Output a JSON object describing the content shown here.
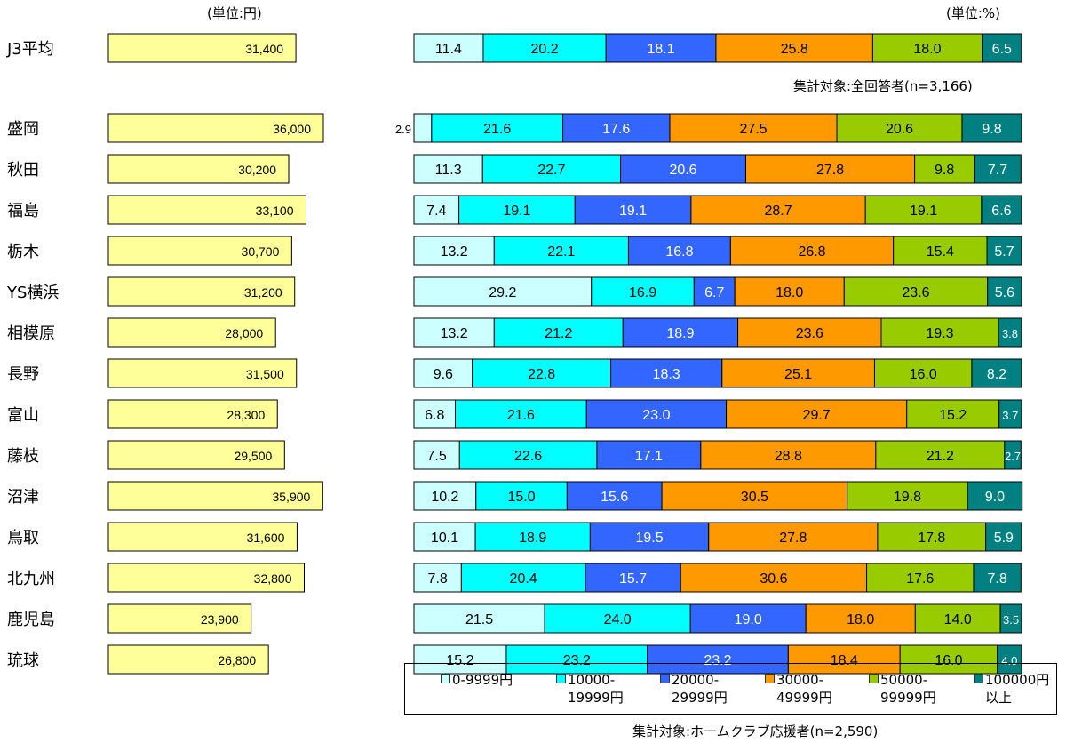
{
  "units": {
    "amount": "(単位:円)",
    "percent": "(単位:%)"
  },
  "notes": {
    "all_respondents": "集計対象:全回答者(n=3,166)",
    "home_supporters": "集計対象:ホームクラブ応援者(n=2,590)"
  },
  "colors": {
    "amount_bar": "#ffff99",
    "segments": [
      "#ccffff",
      "#00ffff",
      "#3366ff",
      "#ff9900",
      "#99cc00",
      "#008080"
    ]
  },
  "chart_data": [
    {
      "type": "bar",
      "orientation": "horizontal",
      "categories": [
        "J3平均",
        "盛岡",
        "秋田",
        "福島",
        "栃木",
        "YS横浜",
        "相模原",
        "長野",
        "富山",
        "藤枝",
        "沼津",
        "鳥取",
        "北九州",
        "鹿児島",
        "琉球"
      ],
      "value_labels": [
        "31,400",
        "36,000",
        "30,200",
        "33,100",
        "30,700",
        "31,200",
        "28,000",
        "31,500",
        "28,300",
        "29,500",
        "35,900",
        "31,600",
        "32,800",
        "23,900",
        "26,800"
      ],
      "values": [
        31400,
        36000,
        30200,
        33100,
        30700,
        31200,
        28000,
        31500,
        28300,
        29500,
        35900,
        31600,
        32800,
        23900,
        26800
      ]
    },
    {
      "type": "bar",
      "orientation": "horizontal",
      "stacked": "100%",
      "categories": [
        "J3平均",
        "盛岡",
        "秋田",
        "福島",
        "栃木",
        "YS横浜",
        "相模原",
        "長野",
        "富山",
        "藤枝",
        "沼津",
        "鳥取",
        "北九州",
        "鹿児島",
        "琉球"
      ],
      "series": [
        {
          "name": "0-9999円",
          "values": [
            11.4,
            2.9,
            11.3,
            7.4,
            13.2,
            29.2,
            13.2,
            9.6,
            6.8,
            7.5,
            10.2,
            10.1,
            7.8,
            21.5,
            15.2
          ]
        },
        {
          "name": "10000-19999円",
          "values": [
            20.2,
            21.6,
            22.7,
            19.1,
            22.1,
            16.9,
            21.2,
            22.8,
            21.6,
            22.6,
            15.0,
            18.9,
            20.4,
            24.0,
            23.2
          ]
        },
        {
          "name": "20000-29999円",
          "values": [
            18.1,
            17.6,
            20.6,
            19.1,
            16.8,
            6.7,
            18.9,
            18.3,
            23.0,
            17.1,
            15.6,
            19.5,
            15.7,
            19.0,
            23.2
          ]
        },
        {
          "name": "30000-49999円",
          "values": [
            25.8,
            27.5,
            27.8,
            28.7,
            26.8,
            18.0,
            23.6,
            25.1,
            29.7,
            28.8,
            30.5,
            27.8,
            30.6,
            18.0,
            18.4
          ]
        },
        {
          "name": "50000-99999円",
          "values": [
            18.0,
            20.6,
            9.8,
            19.1,
            15.4,
            23.6,
            19.3,
            16.0,
            15.2,
            21.2,
            19.8,
            17.8,
            17.6,
            14.0,
            16.0
          ]
        },
        {
          "name": "100000円以上",
          "values": [
            6.5,
            9.8,
            7.7,
            6.6,
            5.7,
            5.6,
            3.8,
            8.2,
            3.7,
            2.7,
            9.0,
            5.9,
            7.8,
            3.5,
            4.0
          ]
        }
      ],
      "labels": [
        [
          "11.4",
          "20.2",
          "18.1",
          "25.8",
          "18.0",
          "6.5"
        ],
        [
          "2.9",
          "21.6",
          "17.6",
          "27.5",
          "20.6",
          "9.8"
        ],
        [
          "11.3",
          "22.7",
          "20.6",
          "27.8",
          "9.8",
          "7.7"
        ],
        [
          "7.4",
          "19.1",
          "19.1",
          "28.7",
          "19.1",
          "6.6"
        ],
        [
          "13.2",
          "22.1",
          "16.8",
          "26.8",
          "15.4",
          "5.7"
        ],
        [
          "29.2",
          "16.9",
          "6.7",
          "18.0",
          "23.6",
          "5.6"
        ],
        [
          "13.2",
          "21.2",
          "18.9",
          "23.6",
          "19.3",
          "3.8"
        ],
        [
          "9.6",
          "22.8",
          "18.3",
          "25.1",
          "16.0",
          "8.2"
        ],
        [
          "6.8",
          "21.6",
          "23.0",
          "29.7",
          "15.2",
          "3.7"
        ],
        [
          "7.5",
          "22.6",
          "17.1",
          "28.8",
          "21.2",
          "2.7"
        ],
        [
          "10.2",
          "15.0",
          "15.6",
          "30.5",
          "19.8",
          "9.0"
        ],
        [
          "10.1",
          "18.9",
          "19.5",
          "27.8",
          "17.8",
          "5.9"
        ],
        [
          "7.8",
          "20.4",
          "15.7",
          "30.6",
          "17.6",
          "7.8"
        ],
        [
          "21.5",
          "24.0",
          "19.0",
          "18.0",
          "14.0",
          "3.5"
        ],
        [
          "15.2",
          "23.2",
          "23.2",
          "18.4",
          "16.0",
          "4.0"
        ]
      ]
    }
  ],
  "legend": [
    {
      "line1": "0-9999円",
      "line2": ""
    },
    {
      "line1": "10000-",
      "line2": "19999円"
    },
    {
      "line1": "20000-",
      "line2": "29999円"
    },
    {
      "line1": "30000-",
      "line2": "49999円"
    },
    {
      "line1": "50000-",
      "line2": "99999円"
    },
    {
      "line1": "100000円",
      "line2": "以上"
    }
  ]
}
